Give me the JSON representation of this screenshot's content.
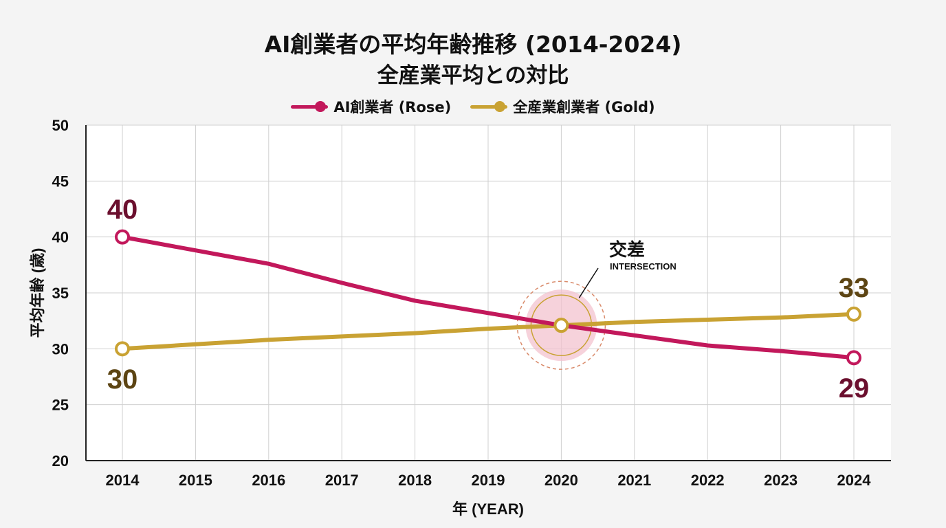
{
  "chart_data": {
    "type": "line",
    "title": "AI創業者の平均年齢推移 (2014-2024)",
    "subtitle": "全産業平均との対比",
    "xlabel": "年 (YEAR)",
    "ylabel": "平均年齢 (歳)",
    "x": [
      2014,
      2015,
      2016,
      2017,
      2018,
      2019,
      2020,
      2021,
      2022,
      2023,
      2024
    ],
    "x_tick_labels": [
      "2014",
      "2015",
      "2016",
      "2017",
      "2018",
      "2019",
      "2020",
      "2021",
      "2022",
      "2023",
      "2024"
    ],
    "ylim": [
      20,
      50
    ],
    "y_ticks": [
      20,
      25,
      30,
      35,
      40,
      45,
      50
    ],
    "y_tick_labels": [
      "20",
      "25",
      "30",
      "35",
      "40",
      "45",
      "50"
    ],
    "grid": true,
    "legend_position": "top-center",
    "series": [
      {
        "name": "AI創業者 (Rose)",
        "color": "#c2185b",
        "label_color": "#6b0f2e",
        "values": [
          40,
          38.8,
          37.6,
          35.9,
          34.3,
          33.2,
          32.1,
          31.2,
          30.3,
          29.8,
          29.2
        ],
        "end_labels": {
          "start": "40",
          "end": "29"
        }
      },
      {
        "name": "全産業創業者 (Gold)",
        "color": "#c9a233",
        "label_color": "#5c4413",
        "values": [
          30,
          30.4,
          30.8,
          31.1,
          31.4,
          31.8,
          32.1,
          32.4,
          32.6,
          32.8,
          33.1
        ],
        "end_labels": {
          "start": "30",
          "end": "33"
        }
      }
    ],
    "annotation": {
      "x": 2020,
      "y": 32.1,
      "label": "交差",
      "sublabel": "INTERSECTION"
    }
  }
}
